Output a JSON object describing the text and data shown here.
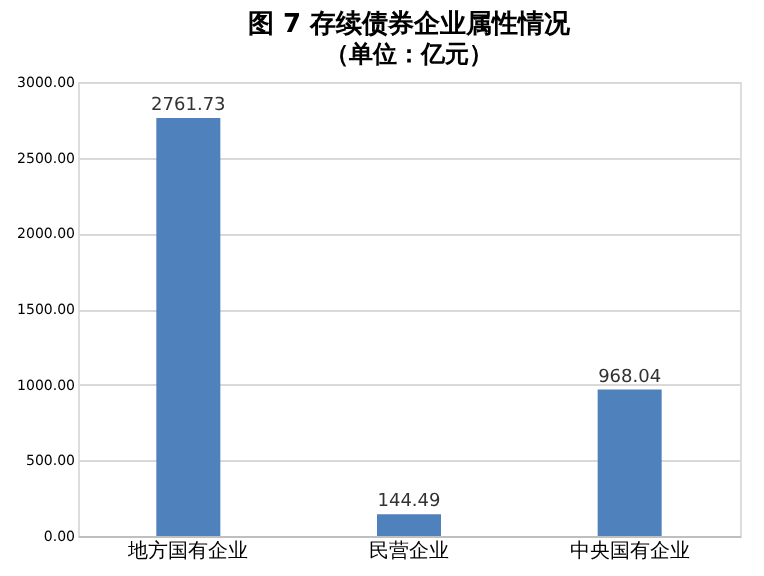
{
  "chart_data": {
    "type": "bar",
    "title": "图 7 存续债券企业属性情况",
    "subtitle": "（单位：亿元）",
    "categories": [
      "地方国有企业",
      "民营企业",
      "中央国有企业"
    ],
    "values": [
      2761.73,
      144.49,
      968.04
    ],
    "color": "#4f81bd",
    "ylim": [
      0,
      3000
    ],
    "yticks": [
      {
        "value": 0,
        "label": "0.00"
      },
      {
        "value": 500,
        "label": "500.00"
      },
      {
        "value": 1000,
        "label": "1000.00"
      },
      {
        "value": 1500,
        "label": "1500.00"
      },
      {
        "value": 2000,
        "label": "2000.00"
      },
      {
        "value": 2500,
        "label": "2500.00"
      },
      {
        "value": 3000,
        "label": "3000.00"
      }
    ],
    "grid": "y",
    "data_labels": true
  }
}
